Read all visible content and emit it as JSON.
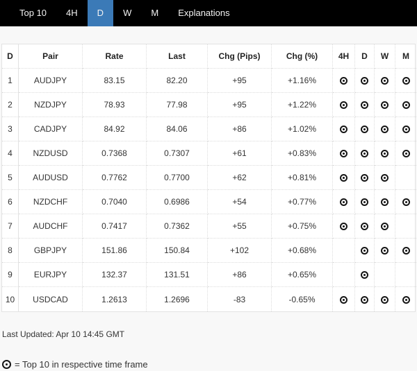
{
  "nav": {
    "items": [
      {
        "id": "top10",
        "label": "Top 10",
        "active": false
      },
      {
        "id": "4h",
        "label": "4H",
        "active": false
      },
      {
        "id": "d",
        "label": "D",
        "active": true
      },
      {
        "id": "w",
        "label": "W",
        "active": false
      },
      {
        "id": "m",
        "label": "M",
        "active": false
      },
      {
        "id": "explanations",
        "label": "Explanations",
        "active": false
      }
    ]
  },
  "colors": {
    "nav_bg": "#000000",
    "active_tab": "#3b7ab7",
    "icon": "#151515"
  },
  "table": {
    "columns": [
      "D",
      "Pair",
      "Rate",
      "Last",
      "Chg (Pips)",
      "Chg (%)",
      "4H",
      "D",
      "W",
      "M"
    ],
    "rows": [
      {
        "rank": "1",
        "pair": "AUDJPY",
        "rate": "83.15",
        "last": "82.20",
        "chg_pips": "+95",
        "chg_pct": "+1.16%",
        "tf_4h": true,
        "tf_d": true,
        "tf_w": true,
        "tf_m": true
      },
      {
        "rank": "2",
        "pair": "NZDJPY",
        "rate": "78.93",
        "last": "77.98",
        "chg_pips": "+95",
        "chg_pct": "+1.22%",
        "tf_4h": true,
        "tf_d": true,
        "tf_w": true,
        "tf_m": true
      },
      {
        "rank": "3",
        "pair": "CADJPY",
        "rate": "84.92",
        "last": "84.06",
        "chg_pips": "+86",
        "chg_pct": "+1.02%",
        "tf_4h": true,
        "tf_d": true,
        "tf_w": true,
        "tf_m": true
      },
      {
        "rank": "4",
        "pair": "NZDUSD",
        "rate": "0.7368",
        "last": "0.7307",
        "chg_pips": "+61",
        "chg_pct": "+0.83%",
        "tf_4h": true,
        "tf_d": true,
        "tf_w": true,
        "tf_m": true
      },
      {
        "rank": "5",
        "pair": "AUDUSD",
        "rate": "0.7762",
        "last": "0.7700",
        "chg_pips": "+62",
        "chg_pct": "+0.81%",
        "tf_4h": true,
        "tf_d": true,
        "tf_w": true,
        "tf_m": false
      },
      {
        "rank": "6",
        "pair": "NZDCHF",
        "rate": "0.7040",
        "last": "0.6986",
        "chg_pips": "+54",
        "chg_pct": "+0.77%",
        "tf_4h": true,
        "tf_d": true,
        "tf_w": true,
        "tf_m": true
      },
      {
        "rank": "7",
        "pair": "AUDCHF",
        "rate": "0.7417",
        "last": "0.7362",
        "chg_pips": "+55",
        "chg_pct": "+0.75%",
        "tf_4h": true,
        "tf_d": true,
        "tf_w": true,
        "tf_m": false
      },
      {
        "rank": "8",
        "pair": "GBPJPY",
        "rate": "151.86",
        "last": "150.84",
        "chg_pips": "+102",
        "chg_pct": "+0.68%",
        "tf_4h": false,
        "tf_d": true,
        "tf_w": true,
        "tf_m": true
      },
      {
        "rank": "9",
        "pair": "EURJPY",
        "rate": "132.37",
        "last": "131.51",
        "chg_pips": "+86",
        "chg_pct": "+0.65%",
        "tf_4h": false,
        "tf_d": true,
        "tf_w": false,
        "tf_m": false
      },
      {
        "rank": "10",
        "pair": "USDCAD",
        "rate": "1.2613",
        "last": "1.2696",
        "chg_pips": "-83",
        "chg_pct": "-0.65%",
        "tf_4h": true,
        "tf_d": true,
        "tf_w": true,
        "tf_m": true
      }
    ]
  },
  "footer": {
    "last_updated": "Last Updated: Apr 10 14:45 GMT",
    "legend_text": "= Top 10 in respective time frame"
  }
}
